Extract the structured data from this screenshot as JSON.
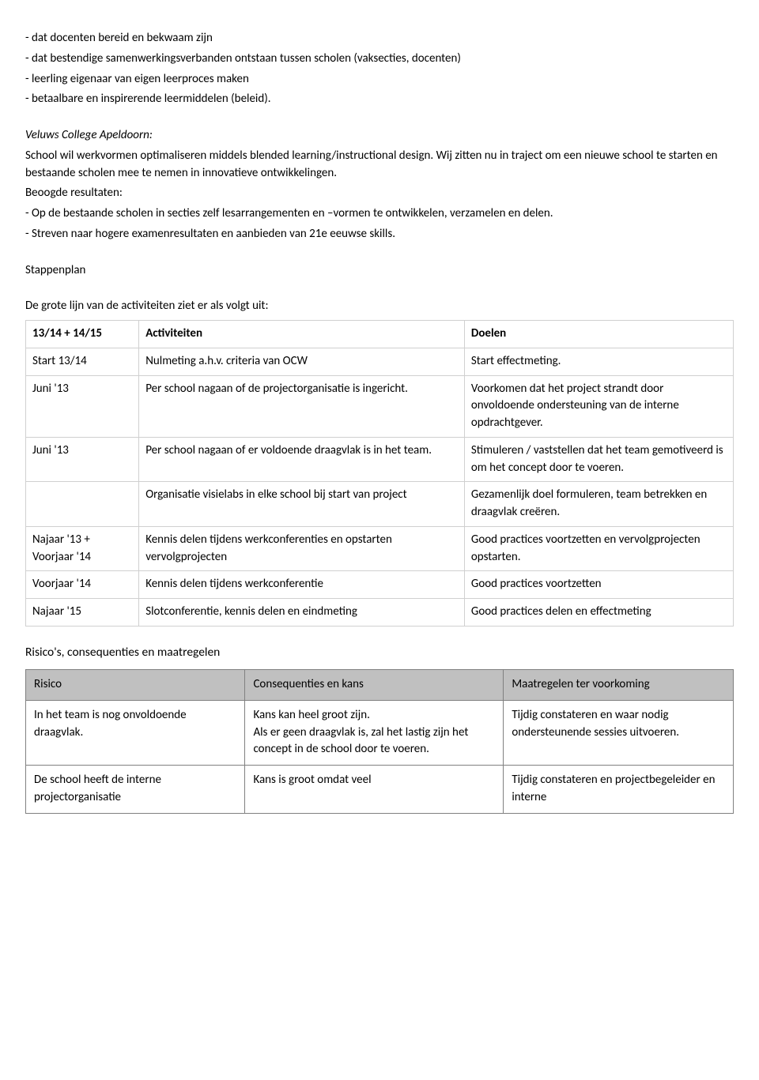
{
  "intro": {
    "bullets": [
      "- dat docenten bereid en bekwaam zijn",
      "- dat bestendige samenwerkingsverbanden ontstaan tussen scholen (vaksecties, docenten)",
      "- leerling eigenaar van eigen leerproces maken",
      "- betaalbare en inspirerende leermiddelen (beleid)."
    ]
  },
  "veluws": {
    "title": "Veluws College Apeldoorn:",
    "p1": "School wil werkvormen optimaliseren middels blended learning/instructional design. Wij zitten nu in traject om een nieuwe school te starten en bestaande scholen mee te nemen in innovatieve ontwikkelingen.",
    "p2": "Beoogde resultaten:",
    "b1": "- Op de bestaande scholen in secties zelf lesarrangementen en –vormen te ontwikkelen, verzamelen en delen.",
    "b2": "- Streven naar hogere examenresultaten en aanbieden van 21e eeuwse skills."
  },
  "stappenplan": {
    "heading": "Stappenplan",
    "intro": "De grote lijn van de activiteiten ziet er als volgt uit:"
  },
  "plan_table": {
    "columns": [
      "13/14 + 14/15",
      "Activiteiten",
      "Doelen"
    ],
    "col_widths_pct": [
      16,
      46,
      38
    ],
    "border_color": "#d0d0d0",
    "font_size": 15,
    "rows": [
      [
        "Start 13/14",
        "Nulmeting a.h.v. criteria van OCW",
        "Start effectmeting."
      ],
      [
        "Juni '13",
        "Per school nagaan of de projectorganisatie is ingericht.",
        "Voorkomen dat het project strandt door onvoldoende ondersteuning van de interne opdrachtgever."
      ],
      [
        "Juni '13",
        "Per school nagaan of er voldoende draagvlak is in het team.",
        "Stimuleren / vaststellen dat het team gemotiveerd is om het concept door te voeren."
      ],
      [
        "",
        "Organisatie visielabs in elke school bij start van project",
        "Gezamenlijk doel formuleren, team betrekken en draagvlak creëren."
      ],
      [
        "Najaar '13 + Voorjaar '14",
        "Kennis delen tijdens werkconferenties en opstarten vervolgprojecten",
        "Good practices voortzetten en vervolgprojecten opstarten."
      ],
      [
        "Voorjaar '14",
        "Kennis delen tijdens werkconferentie",
        "Good practices voortzetten"
      ],
      [
        "Najaar '15",
        "Slotconferentie, kennis delen en eindmeting",
        "Good practices delen en effectmeting"
      ]
    ]
  },
  "risico_heading": "Risico's, consequenties en maatregelen",
  "risico_table": {
    "columns": [
      "Risico",
      "Consequenties en kans",
      "Maatregelen ter voorkoming"
    ],
    "col_widths_pct": [
      31,
      34.5,
      34.5
    ],
    "header_bg": "#c0c0c0",
    "border_color": "#808080",
    "font_size": 15,
    "rows": [
      [
        "In het team is nog onvoldoende draagvlak.",
        "Kans kan heel groot zijn.\nAls er geen draagvlak is, zal het lastig zijn het concept in de school door te voeren.",
        "Tijdig constateren en waar nodig ondersteunende sessies uitvoeren."
      ],
      [
        "De school heeft de interne projectorganisatie",
        "Kans is groot omdat veel",
        "Tijdig constateren en projectbegeleider en interne"
      ]
    ]
  }
}
